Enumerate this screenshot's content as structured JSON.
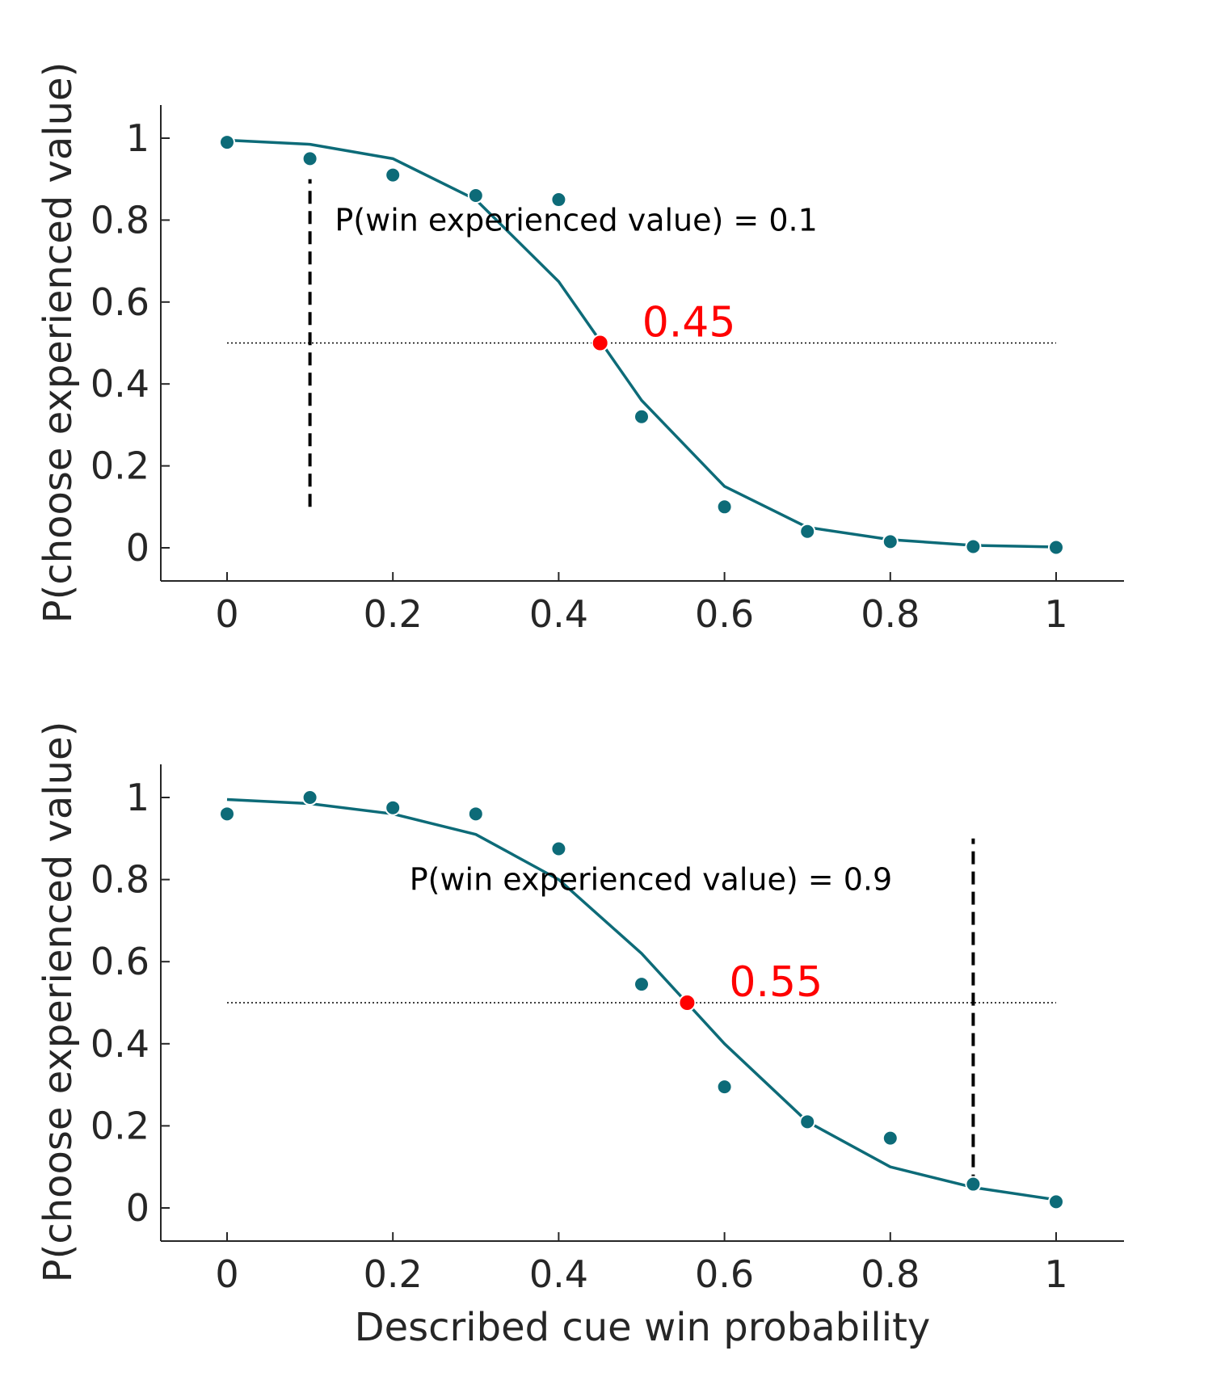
{
  "colors": {
    "series": "#0d6b78",
    "crossing": "#ff0000",
    "axis": "#262626",
    "dashed_line": "#000000"
  },
  "chart_data": [
    {
      "type": "line",
      "xlabel": "",
      "ylabel": "P(choose experienced value)",
      "xlim": [
        -0.08,
        1.08
      ],
      "ylim": [
        -0.08,
        1.08
      ],
      "xticks": [
        0,
        0.2,
        0.4,
        0.6,
        0.8,
        1
      ],
      "xtick_labels": [
        "0",
        "0.2",
        "0.4",
        "0.6",
        "0.8",
        "1"
      ],
      "yticks": [
        0,
        0.2,
        0.4,
        0.6,
        0.8,
        1
      ],
      "ytick_labels": [
        "0",
        "0.2",
        "0.4",
        "0.6",
        "0.8",
        "1"
      ],
      "grid": false,
      "points": {
        "x": [
          0,
          0.1,
          0.2,
          0.3,
          0.4,
          0.5,
          0.6,
          0.7,
          0.8,
          0.9,
          1
        ],
        "y": [
          0.99,
          0.95,
          0.91,
          0.86,
          0.85,
          0.32,
          0.1,
          0.04,
          0.015,
          0.003,
          0.001
        ]
      },
      "fit_line": {
        "x": [
          0,
          0.1,
          0.2,
          0.3,
          0.4,
          0.5,
          0.6,
          0.7,
          0.8,
          0.9,
          1
        ],
        "y": [
          0.995,
          0.985,
          0.95,
          0.85,
          0.65,
          0.36,
          0.15,
          0.05,
          0.02,
          0.006,
          0.002
        ]
      },
      "reference_y": 0.5,
      "crossing": {
        "x": 0.45,
        "y": 0.5,
        "label": "0.45"
      },
      "vline": {
        "x": 0.1,
        "y_from": 0.1,
        "y_to": 0.9
      },
      "annotation": {
        "text": "P(win experienced value) = 0.1",
        "x": 0.13,
        "y": 0.8
      }
    },
    {
      "type": "line",
      "xlabel": "Described cue win probability",
      "ylabel": "P(choose experienced value)",
      "xlim": [
        -0.08,
        1.08
      ],
      "ylim": [
        -0.08,
        1.08
      ],
      "xticks": [
        0,
        0.2,
        0.4,
        0.6,
        0.8,
        1
      ],
      "xtick_labels": [
        "0",
        "0.2",
        "0.4",
        "0.6",
        "0.8",
        "1"
      ],
      "yticks": [
        0,
        0.2,
        0.4,
        0.6,
        0.8,
        1
      ],
      "ytick_labels": [
        "0",
        "0.2",
        "0.4",
        "0.6",
        "0.8",
        "1"
      ],
      "grid": false,
      "points": {
        "x": [
          0,
          0.1,
          0.2,
          0.3,
          0.4,
          0.5,
          0.6,
          0.7,
          0.8,
          0.9,
          1
        ],
        "y": [
          0.96,
          1.0,
          0.975,
          0.96,
          0.875,
          0.545,
          0.295,
          0.21,
          0.17,
          0.058,
          0.015
        ]
      },
      "fit_line": {
        "x": [
          0,
          0.1,
          0.2,
          0.3,
          0.4,
          0.5,
          0.6,
          0.7,
          0.8,
          0.9,
          1
        ],
        "y": [
          0.995,
          0.985,
          0.96,
          0.91,
          0.8,
          0.62,
          0.4,
          0.21,
          0.1,
          0.05,
          0.02
        ]
      },
      "reference_y": 0.5,
      "crossing": {
        "x": 0.555,
        "y": 0.5,
        "label": "0.55"
      },
      "vline": {
        "x": 0.9,
        "y_from": 0.05,
        "y_to": 0.9
      },
      "annotation": {
        "text": "P(win experienced value) = 0.9",
        "x": 0.22,
        "y": 0.8
      }
    }
  ]
}
